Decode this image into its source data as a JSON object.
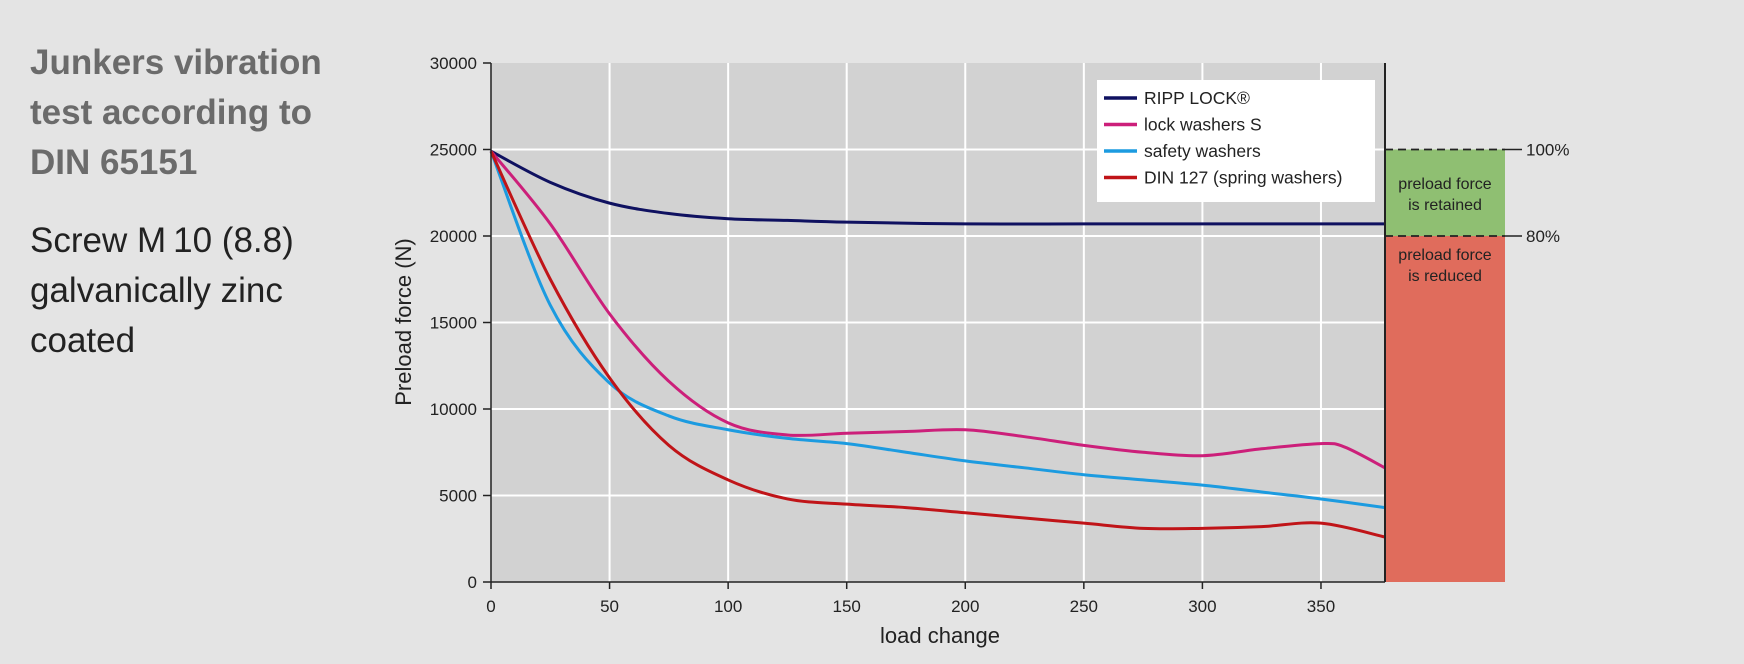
{
  "heading": {
    "lines": [
      "Junkers vibration",
      "test according to",
      "DIN 65151"
    ]
  },
  "subheading": {
    "lines": [
      "Screw M 10 (8.8)",
      "galvanically zinc",
      "coated"
    ]
  },
  "colors": {
    "page_background": "#e4e4e4",
    "plot_background": "#d2d2d2",
    "retained_zone": "#8fbf72",
    "reduced_zone": "#e06c5c"
  },
  "chart_data": {
    "type": "line",
    "title": "",
    "xlabel": "load change",
    "ylabel": "Preload force (N)",
    "xlim": [
      0,
      377
    ],
    "ylim": [
      0,
      30000
    ],
    "x_ticks": [
      0,
      50,
      100,
      150,
      200,
      250,
      300,
      350
    ],
    "y_ticks": [
      0,
      5000,
      10000,
      15000,
      20000,
      25000,
      30000
    ],
    "grid": true,
    "legend_position": "top-right",
    "series": [
      {
        "name": "RIPP LOCK®",
        "color": "#0f1160",
        "x": [
          0,
          25,
          50,
          75,
          100,
          125,
          150,
          200,
          250,
          300,
          350,
          377
        ],
        "y": [
          24900,
          23100,
          21900,
          21300,
          21000,
          20900,
          20800,
          20700,
          20700,
          20700,
          20700,
          20700
        ]
      },
      {
        "name": "lock washers S",
        "color": "#cc1f7a",
        "x": [
          0,
          25,
          50,
          75,
          100,
          125,
          150,
          175,
          200,
          225,
          250,
          275,
          300,
          325,
          350,
          360,
          377
        ],
        "y": [
          24900,
          20700,
          15500,
          11600,
          9200,
          8500,
          8600,
          8700,
          8800,
          8400,
          7900,
          7500,
          7300,
          7700,
          8000,
          7800,
          6600
        ]
      },
      {
        "name": "safety washers",
        "color": "#1c9be0",
        "x": [
          0,
          25,
          50,
          75,
          100,
          125,
          150,
          175,
          200,
          225,
          250,
          275,
          300,
          325,
          350,
          377
        ],
        "y": [
          24900,
          16000,
          11500,
          9600,
          8800,
          8300,
          8000,
          7500,
          7000,
          6600,
          6200,
          5900,
          5600,
          5200,
          4800,
          4300
        ]
      },
      {
        "name": "DIN 127 (spring washers)",
        "color": "#c01418",
        "x": [
          0,
          25,
          50,
          75,
          100,
          125,
          150,
          175,
          200,
          225,
          250,
          275,
          300,
          325,
          350,
          377
        ],
        "y": [
          24900,
          17500,
          11800,
          7900,
          5900,
          4800,
          4500,
          4300,
          4000,
          3700,
          3400,
          3100,
          3100,
          3200,
          3400,
          2600
        ]
      }
    ],
    "reference_lines": [
      {
        "label": "100%",
        "value": 25000
      },
      {
        "label": "80%",
        "value": 20000
      }
    ],
    "zones": [
      {
        "label_lines": [
          "preload force",
          "is retained"
        ],
        "from": 20000,
        "to": 25000,
        "color": "#8fbf72"
      },
      {
        "label_lines": [
          "preload force",
          "is reduced"
        ],
        "from": 0,
        "to": 20000,
        "color": "#e06c5c"
      }
    ]
  }
}
